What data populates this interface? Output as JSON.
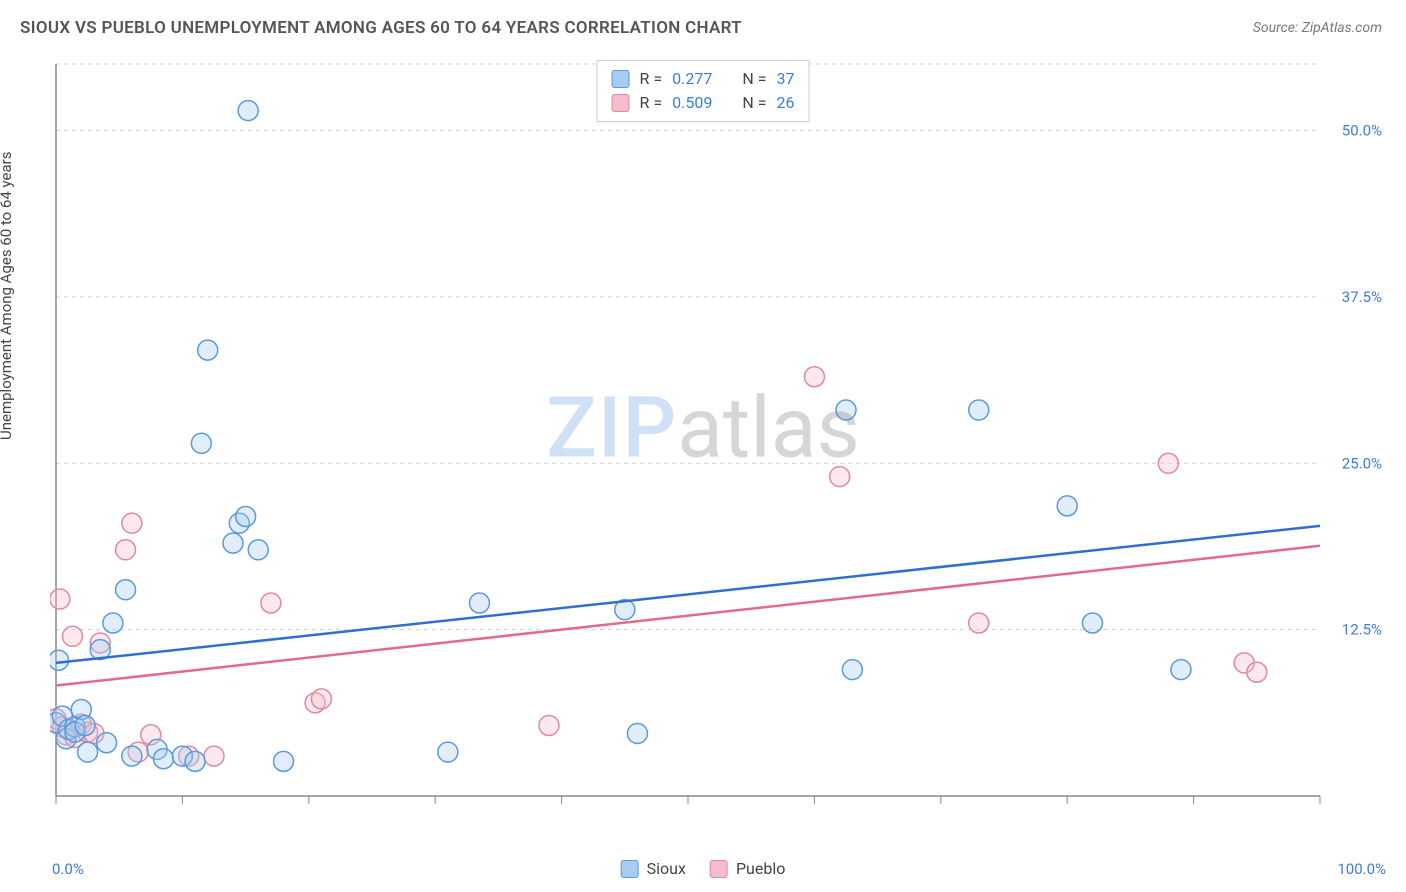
{
  "title": "SIOUX VS PUEBLO UNEMPLOYMENT AMONG AGES 60 TO 64 YEARS CORRELATION CHART",
  "source": {
    "label": "Source:",
    "value": "ZipAtlas.com"
  },
  "ylabel": "Unemployment Among Ages 60 to 64 years",
  "watermark": {
    "a": "ZIP",
    "b": "atlas"
  },
  "chart": {
    "type": "scatter",
    "background_color": "#ffffff",
    "grid_color": "#d0d0d0",
    "axis_color": "#888888",
    "marker_radius": 10,
    "marker_fill_opacity": 0.35,
    "marker_stroke_width": 1.5,
    "trend_stroke_width": 2.5,
    "xlim": [
      0,
      100
    ],
    "ylim": [
      0,
      55
    ],
    "x_ticks": [
      0,
      10,
      20,
      30,
      40,
      50,
      60,
      70,
      80,
      90,
      100
    ],
    "y_ticks": [
      12.5,
      25.0,
      37.5,
      50.0
    ],
    "y_tick_labels": [
      "12.5%",
      "25.0%",
      "37.5%",
      "50.0%"
    ],
    "x_axis_labels": {
      "left": "0.0%",
      "right": "100.0%"
    },
    "legend_top": [
      {
        "series": "sioux",
        "r_label": "R =",
        "r_value": "0.277",
        "n_label": "N =",
        "n_value": "37"
      },
      {
        "series": "pueblo",
        "r_label": "R =",
        "r_value": "0.509",
        "n_label": "N =",
        "n_value": "26"
      }
    ],
    "legend_bottom": [
      {
        "series": "sioux",
        "label": "Sioux"
      },
      {
        "series": "pueblo",
        "label": "Pueblo"
      }
    ],
    "series": {
      "sioux": {
        "color_fill": "#a8ccf0",
        "color_stroke": "#5a9bd8",
        "trend_color": "#2f6fd0",
        "trend": {
          "x1": 0,
          "y1": 10.0,
          "x2": 100,
          "y2": 20.3
        },
        "points": [
          [
            0.0,
            5.5
          ],
          [
            0.2,
            10.2
          ],
          [
            0.5,
            6.0
          ],
          [
            0.8,
            4.3
          ],
          [
            1.0,
            5.0
          ],
          [
            1.5,
            5.2
          ],
          [
            1.5,
            4.8
          ],
          [
            2.0,
            6.5
          ],
          [
            2.3,
            5.3
          ],
          [
            2.5,
            3.3
          ],
          [
            3.5,
            11.0
          ],
          [
            4.0,
            4.0
          ],
          [
            4.5,
            13.0
          ],
          [
            5.5,
            15.5
          ],
          [
            6.0,
            3.0
          ],
          [
            8.0,
            3.5
          ],
          [
            8.5,
            2.8
          ],
          [
            10.0,
            3.0
          ],
          [
            11.0,
            2.6
          ],
          [
            11.5,
            26.5
          ],
          [
            12.0,
            33.5
          ],
          [
            14.0,
            19.0
          ],
          [
            14.5,
            20.5
          ],
          [
            15.0,
            21.0
          ],
          [
            15.2,
            51.5
          ],
          [
            16.0,
            18.5
          ],
          [
            18.0,
            2.6
          ],
          [
            31.0,
            3.3
          ],
          [
            33.5,
            14.5
          ],
          [
            45.0,
            14.0
          ],
          [
            46.0,
            4.7
          ],
          [
            62.5,
            29.0
          ],
          [
            63.0,
            9.5
          ],
          [
            73.0,
            29.0
          ],
          [
            80.0,
            21.8
          ],
          [
            82.0,
            13.0
          ],
          [
            89.0,
            9.5
          ]
        ]
      },
      "pueblo": {
        "color_fill": "#f5bccb",
        "color_stroke": "#e089a3",
        "trend_color": "#e06b8a",
        "trend": {
          "x1": 0,
          "y1": 8.3,
          "x2": 100,
          "y2": 18.8
        },
        "points": [
          [
            0.0,
            5.8
          ],
          [
            0.3,
            14.8
          ],
          [
            0.5,
            5.2
          ],
          [
            0.8,
            4.6
          ],
          [
            1.3,
            12.0
          ],
          [
            1.5,
            4.4
          ],
          [
            2.0,
            5.4
          ],
          [
            2.5,
            4.8
          ],
          [
            3.0,
            4.7
          ],
          [
            3.5,
            11.5
          ],
          [
            5.5,
            18.5
          ],
          [
            6.0,
            20.5
          ],
          [
            6.5,
            3.3
          ],
          [
            7.5,
            4.6
          ],
          [
            10.5,
            3.0
          ],
          [
            12.5,
            3.0
          ],
          [
            17.0,
            14.5
          ],
          [
            20.5,
            7.0
          ],
          [
            21.0,
            7.3
          ],
          [
            39.0,
            5.3
          ],
          [
            60.0,
            31.5
          ],
          [
            62.0,
            24.0
          ],
          [
            73.0,
            13.0
          ],
          [
            88.0,
            25.0
          ],
          [
            94.0,
            10.0
          ],
          [
            95.0,
            9.3
          ]
        ]
      }
    }
  }
}
